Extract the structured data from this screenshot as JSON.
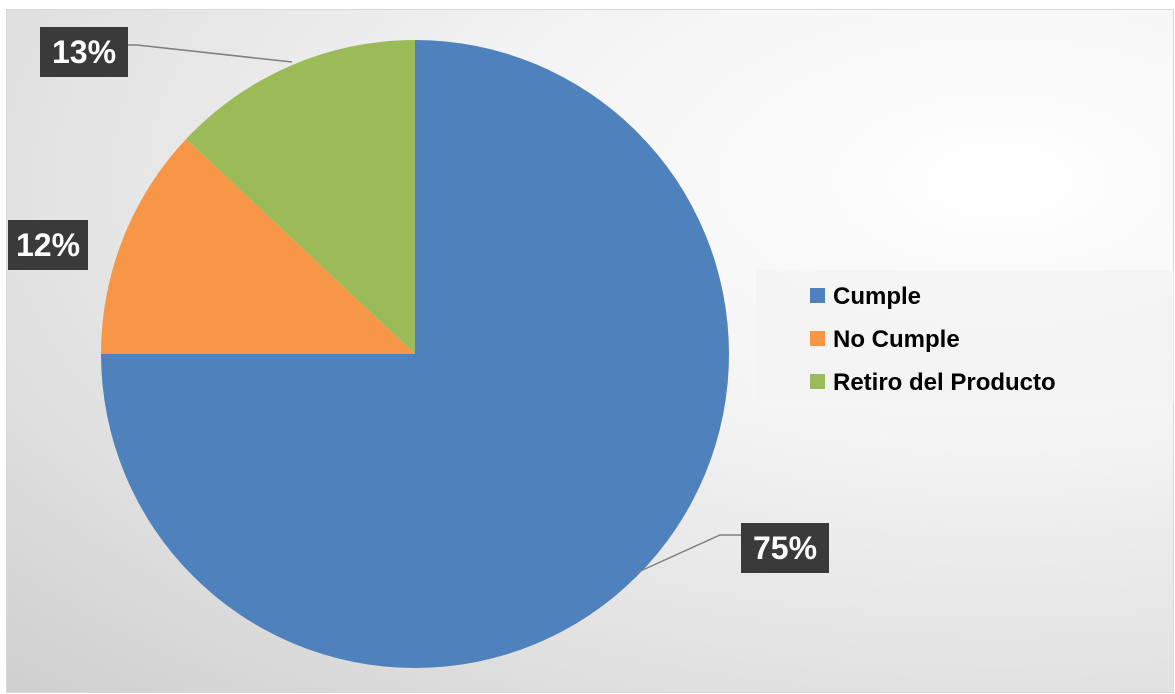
{
  "chart_data": {
    "type": "pie",
    "title": "",
    "categories": [
      "Cumple",
      "No Cumple",
      "Retiro del Producto"
    ],
    "values": [
      75,
      12,
      13
    ],
    "labels": [
      "75%",
      "12%",
      "13%"
    ],
    "colors": [
      "#4f81bd",
      "#f79646",
      "#9bbb59"
    ],
    "legend_position": "right"
  }
}
